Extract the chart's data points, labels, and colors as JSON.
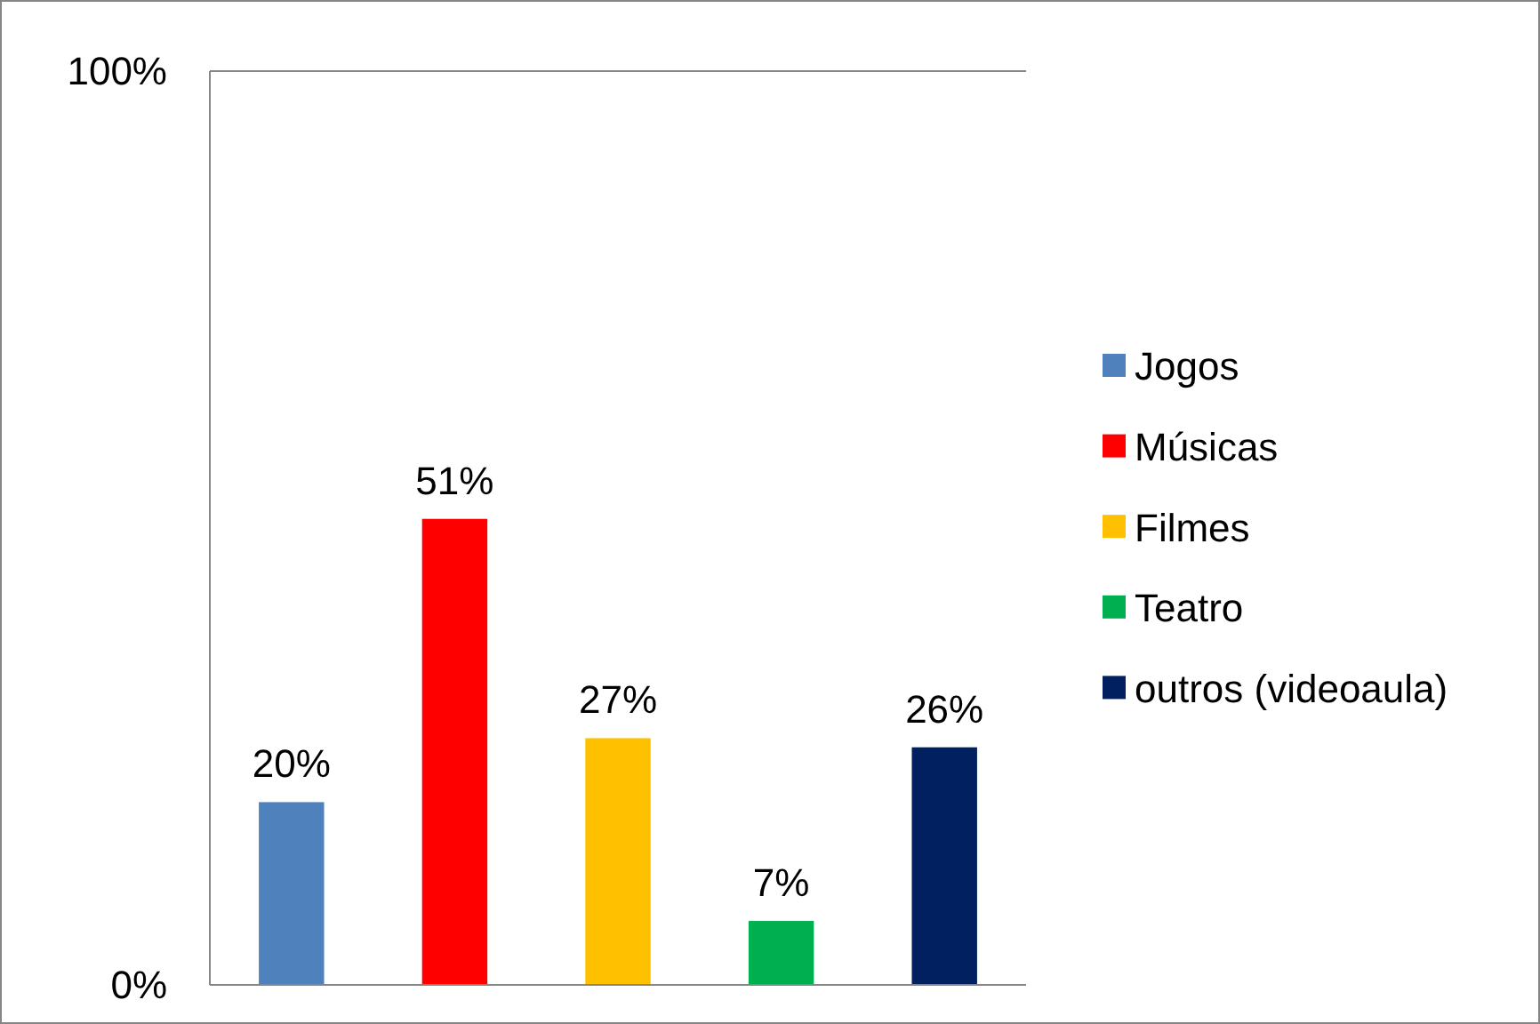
{
  "chart_data": {
    "type": "bar",
    "categories": [
      null,
      null,
      null,
      null,
      null
    ],
    "series": [
      {
        "name": "Jogos",
        "color": "#4f81bd",
        "values": [
          20,
          null,
          null,
          null,
          null
        ],
        "value_labels": [
          "20%",
          null,
          null,
          null,
          null
        ]
      },
      {
        "name": "Músicas",
        "color": "#ff0000",
        "values": [
          null,
          51,
          null,
          null,
          null
        ],
        "value_labels": [
          null,
          "51%",
          null,
          null,
          null
        ]
      },
      {
        "name": "Filmes",
        "color": "#ffc000",
        "values": [
          null,
          null,
          27,
          null,
          null
        ],
        "value_labels": [
          null,
          null,
          "27%",
          null,
          null
        ]
      },
      {
        "name": "Teatro",
        "color": "#00b050",
        "values": [
          null,
          null,
          null,
          7,
          null
        ],
        "value_labels": [
          null,
          null,
          null,
          "7%",
          null
        ]
      },
      {
        "name": "outros (videoaula)",
        "color": "#002060",
        "values": [
          null,
          null,
          null,
          null,
          26
        ],
        "value_labels": [
          null,
          null,
          null,
          null,
          "26%"
        ]
      }
    ],
    "ylim": [
      0,
      100
    ],
    "yticks": [
      {
        "value": 0,
        "label": "0%"
      },
      {
        "value": 100,
        "label": "100%"
      }
    ],
    "grid": "y",
    "legend": "right",
    "tick_labels": "y"
  }
}
